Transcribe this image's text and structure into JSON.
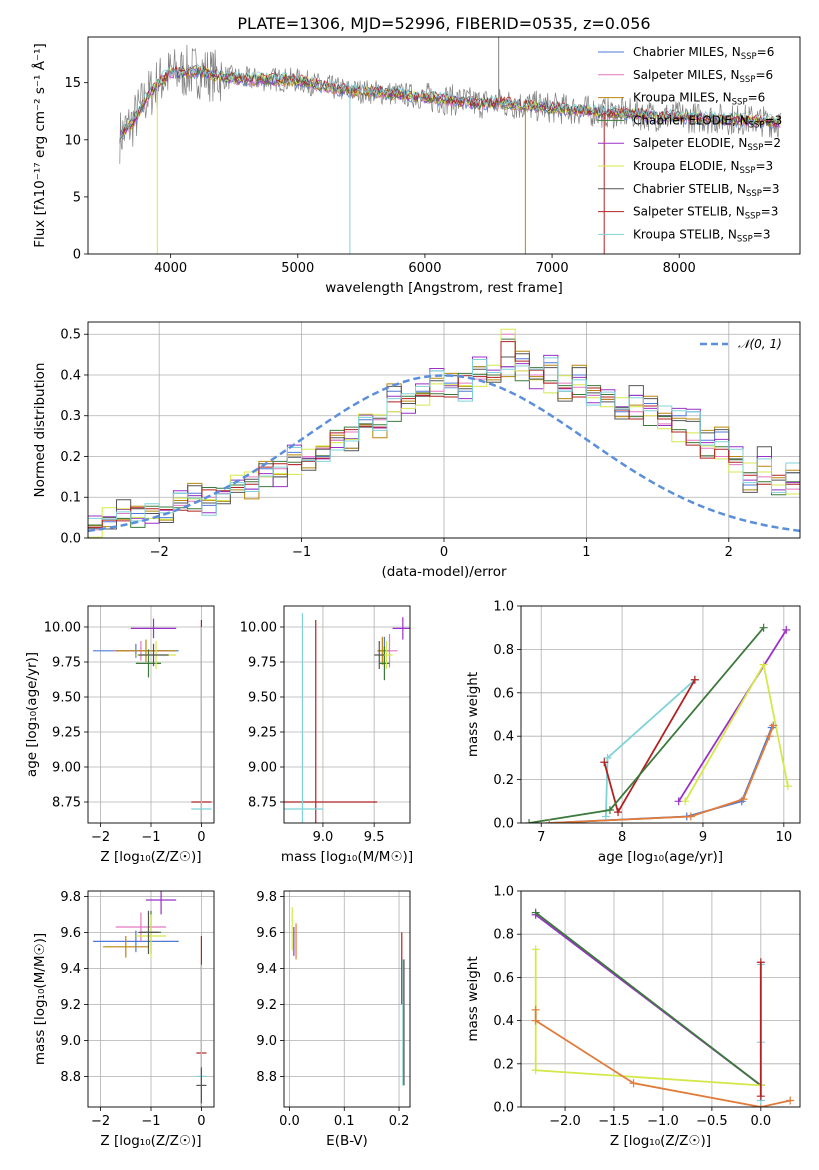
{
  "figure": {
    "title": "PLATE=1306, MJD=52996, FIBERID=0535, z=0.056"
  },
  "legend_spectrum": [
    {
      "name": "Chabrier MILES, N",
      "sub": "SSP",
      "suffix": "=6",
      "color": "#4e79d8"
    },
    {
      "name": "Salpeter MILES, N",
      "sub": "SSP",
      "suffix": "=6",
      "color": "#e377c2"
    },
    {
      "name": "Kroupa MILES, N",
      "sub": "SSP",
      "suffix": "=6",
      "color": "#b8860b"
    },
    {
      "name": "Chabrier ELODIE, N",
      "sub": "SSP",
      "suffix": "=3",
      "color": "#3c7a3c"
    },
    {
      "name": "Salpeter ELODIE, N",
      "sub": "SSP",
      "suffix": "=2",
      "color": "#9b30c8"
    },
    {
      "name": "Kroupa ELODIE, N",
      "sub": "SSP",
      "suffix": "=3",
      "color": "#d4e84a"
    },
    {
      "name": "Chabrier STELIB, N",
      "sub": "SSP",
      "suffix": "=3",
      "color": "#555555"
    },
    {
      "name": "Salpeter STELIB, N",
      "sub": "SSP",
      "suffix": "=3",
      "color": "#b22222"
    },
    {
      "name": "Kroupa STELIB, N",
      "sub": "SSP",
      "suffix": "=3",
      "color": "#7fd3d8"
    }
  ],
  "legend_hist": {
    "label": "𝒩(0, 1)",
    "color": "#5b8fdc"
  },
  "chart_data": [
    {
      "type": "line",
      "id": "spectrum",
      "xlabel": "wavelength [Angstrom, rest frame]",
      "ylabel": "Flux [fλ10⁻¹⁷ erg cm⁻² s⁻¹ Å⁻¹]",
      "xlim": [
        3350,
        8950
      ],
      "ylim": [
        0,
        19
      ],
      "xticks": [
        4000,
        5000,
        6000,
        7000,
        8000
      ],
      "yticks": [
        0,
        5,
        10,
        15
      ],
      "grid": false,
      "legend": "top-right",
      "x": [
        3600,
        3700,
        3800,
        3900,
        4000,
        4200,
        4400,
        4600,
        4800,
        5000,
        5200,
        5400,
        5600,
        5800,
        6000,
        6200,
        6400,
        6600,
        6800,
        7000,
        7200,
        7400,
        7600,
        7800,
        8000,
        8200,
        8400,
        8600,
        8800
      ],
      "series": [
        {
          "y": [
            10.3,
            11.5,
            13.5,
            15.0,
            15.8,
            16.0,
            15.5,
            15.3,
            15.3,
            15.2,
            14.7,
            14.3,
            14.2,
            14.0,
            13.7,
            13.5,
            13.2,
            13.2,
            13.0,
            12.8,
            12.6,
            12.4,
            12.3,
            12.1,
            12.0,
            11.9,
            11.8,
            11.7,
            11.5
          ]
        }
      ]
    },
    {
      "type": "histogram",
      "id": "residuals",
      "xlabel": "(data-model)/error",
      "ylabel": "Normed distribution",
      "xlim": [
        -2.5,
        2.5
      ],
      "ylim": [
        0,
        0.53
      ],
      "xticks": [
        -2,
        -1,
        0,
        1,
        2
      ],
      "yticks": [
        0.0,
        0.1,
        0.2,
        0.3,
        0.4,
        0.5
      ],
      "grid": true,
      "legend": "top-right",
      "bin_width": 0.1,
      "series": [
        {
          "name": "Salpeter ELODIE",
          "values": [
            0.03,
            0.04,
            0.07,
            0.06,
            0.06,
            0.05,
            0.11,
            0.11,
            0.08,
            0.09,
            0.13,
            0.12,
            0.17,
            0.15,
            0.21,
            0.19,
            0.2,
            0.24,
            0.22,
            0.29,
            0.27,
            0.36,
            0.33,
            0.36,
            0.41,
            0.38,
            0.36,
            0.42,
            0.4,
            0.42,
            0.44,
            0.39,
            0.43,
            0.36,
            0.4,
            0.35,
            0.34,
            0.31,
            0.35,
            0.33,
            0.3,
            0.3,
            0.31,
            0.24,
            0.26,
            0.2,
            0.13,
            0.2,
            0.13,
            0.16,
            0.12,
            0.12,
            0.1,
            0.09,
            0.11,
            0.06,
            0.08,
            0.06,
            0.05,
            0.04
          ]
        },
        {
          "name": "Kroupa STELIB",
          "values": [
            0.02,
            0.05,
            0.06,
            0.05,
            0.06,
            0.07,
            0.08,
            0.09,
            0.1,
            0.11,
            0.13,
            0.15,
            0.15,
            0.17,
            0.18,
            0.2,
            0.22,
            0.24,
            0.26,
            0.28,
            0.29,
            0.31,
            0.33,
            0.35,
            0.36,
            0.37,
            0.38,
            0.39,
            0.4,
            0.5,
            0.41,
            0.4,
            0.38,
            0.38,
            0.37,
            0.35,
            0.34,
            0.32,
            0.31,
            0.3,
            0.28,
            0.26,
            0.24,
            0.22,
            0.2,
            0.18,
            0.16,
            0.15,
            0.13,
            0.12,
            0.1,
            0.09,
            0.08,
            0.07,
            0.06,
            0.05,
            0.05,
            0.04,
            0.03,
            0.03
          ]
        }
      ],
      "normal_curve": {
        "mu": 0,
        "sigma": 1,
        "label": "𝒩(0, 1)"
      }
    },
    {
      "type": "scatter",
      "id": "age-vs-Z",
      "xlabel": "Z [log₁₀(Z/Z☉)]",
      "ylabel": "age  [log₁₀(age/yr)]",
      "xlim": [
        -2.25,
        0.25
      ],
      "ylim": [
        8.6,
        10.15
      ],
      "xticks": [
        -2,
        -1,
        0
      ],
      "yticks": [
        8.75,
        9.0,
        9.25,
        9.5,
        9.75,
        10.0
      ],
      "grid": true,
      "points": [
        {
          "x": -1.3,
          "y": 9.83,
          "xerr": 0.85,
          "yerr": 0.05,
          "color": "#4e79d8"
        },
        {
          "x": -1.2,
          "y": 9.83,
          "xerr": 0.55,
          "yerr": 0.07,
          "color": "#e377c2"
        },
        {
          "x": -1.1,
          "y": 9.83,
          "xerr": 0.6,
          "yerr": 0.08,
          "color": "#b8860b"
        },
        {
          "x": -1.05,
          "y": 9.74,
          "xerr": 0.25,
          "yerr": 0.1,
          "color": "#3c7a3c"
        },
        {
          "x": -0.95,
          "y": 9.99,
          "xerr": 0.45,
          "yerr": 0.07,
          "color": "#9b30c8"
        },
        {
          "x": -0.9,
          "y": 9.8,
          "xerr": 0.4,
          "yerr": 0.1,
          "color": "#d4e84a"
        },
        {
          "x": -0.95,
          "y": 9.8,
          "xerr": 0.3,
          "yerr": 0.08,
          "color": "#555555"
        },
        {
          "x": 0.0,
          "y": 8.75,
          "xerr": 0.2,
          "yerr": 1.3,
          "color": "#b22222"
        },
        {
          "x": 0.0,
          "y": 8.7,
          "xerr": 0.2,
          "yerr": 1.3,
          "color": "#7fd3d8"
        }
      ]
    },
    {
      "type": "scatter",
      "id": "age-vs-mass",
      "xlabel": "mass [log₁₀(M/M☉)]",
      "ylabel": "",
      "xlim": [
        8.62,
        9.85
      ],
      "ylim": [
        8.6,
        10.15
      ],
      "xticks": [
        9.0,
        9.5
      ],
      "yticks": [
        8.75,
        9.0,
        9.25,
        9.5,
        9.75,
        10.0
      ],
      "grid": true,
      "points": [
        {
          "x": 9.6,
          "y": 9.83,
          "xerr": 0.05,
          "yerr": 0.1,
          "color": "#4e79d8"
        },
        {
          "x": 9.65,
          "y": 9.83,
          "xerr": 0.08,
          "yerr": 0.12,
          "color": "#e377c2"
        },
        {
          "x": 9.58,
          "y": 9.83,
          "xerr": 0.05,
          "yerr": 0.1,
          "color": "#b8860b"
        },
        {
          "x": 9.6,
          "y": 9.74,
          "xerr": 0.05,
          "yerr": 0.12,
          "color": "#3c7a3c"
        },
        {
          "x": 9.78,
          "y": 9.99,
          "xerr": 0.1,
          "yerr": 0.08,
          "color": "#9b30c8"
        },
        {
          "x": 9.62,
          "y": 9.8,
          "xerr": 0.06,
          "yerr": 0.1,
          "color": "#d4e84a"
        },
        {
          "x": 9.55,
          "y": 9.8,
          "xerr": 0.05,
          "yerr": 0.1,
          "color": "#555555"
        },
        {
          "x": 8.93,
          "y": 8.75,
          "xerr": 0.6,
          "yerr": 1.3,
          "color": "#b22222"
        },
        {
          "x": 8.8,
          "y": 8.7,
          "xerr": 0.2,
          "yerr": 1.4,
          "color": "#7fd3d8"
        }
      ]
    },
    {
      "type": "line",
      "id": "massweight-vs-age",
      "xlabel": "age  [log₁₀(age/yr)]",
      "ylabel": "mass weight",
      "xlim": [
        6.75,
        10.2
      ],
      "ylim": [
        0,
        1.0
      ],
      "xticks": [
        7,
        8,
        9,
        10
      ],
      "yticks": [
        0.0,
        0.2,
        0.4,
        0.6,
        0.8,
        1.0
      ],
      "grid": true,
      "series": [
        {
          "color": "#7fd3d8",
          "x": [
            7.8,
            7.82,
            8.9
          ],
          "y": [
            0.03,
            0.3,
            0.66
          ]
        },
        {
          "color": "#b22222",
          "x": [
            7.78,
            7.95,
            8.9
          ],
          "y": [
            0.28,
            0.05,
            0.66
          ]
        },
        {
          "color": "#3c7a3c",
          "x": [
            6.85,
            7.85,
            9.75
          ],
          "y": [
            0.0,
            0.06,
            0.9
          ]
        },
        {
          "color": "#9b30c8",
          "x": [
            8.7,
            10.03
          ],
          "y": [
            0.1,
            0.89
          ]
        },
        {
          "color": "#d4e84a",
          "x": [
            8.78,
            9.75,
            10.05
          ],
          "y": [
            0.1,
            0.73,
            0.17
          ]
        },
        {
          "color": "#4e79d8",
          "x": [
            7.1,
            8.8,
            9.48,
            9.85
          ],
          "y": [
            0.0,
            0.03,
            0.1,
            0.44
          ]
        },
        {
          "color": "#e07b39",
          "x": [
            7.1,
            8.85,
            9.5,
            9.82,
            9.87
          ],
          "y": [
            0.0,
            0.03,
            0.11,
            0.4,
            0.45
          ]
        }
      ]
    },
    {
      "type": "scatter",
      "id": "mass-vs-Z",
      "xlabel": "Z [log₁₀(Z/Z☉)]",
      "ylabel": "mass [log₁₀(M/M☉)]",
      "xlim": [
        -2.25,
        0.25
      ],
      "ylim": [
        8.63,
        9.83
      ],
      "xticks": [
        -2,
        -1,
        0
      ],
      "yticks": [
        8.8,
        9.0,
        9.2,
        9.4,
        9.6,
        9.8
      ],
      "grid": true,
      "points": [
        {
          "x": -1.3,
          "y": 9.55,
          "xerr": 0.85,
          "yerr": 0.06,
          "color": "#4e79d8"
        },
        {
          "x": -1.2,
          "y": 9.63,
          "xerr": 0.5,
          "yerr": 0.08,
          "color": "#e377c2"
        },
        {
          "x": -1.5,
          "y": 9.52,
          "xerr": 0.45,
          "yerr": 0.06,
          "color": "#b8860b"
        },
        {
          "x": -1.0,
          "y": 9.6,
          "xerr": 0.2,
          "yerr": 0.12,
          "color": "#3c7a3c"
        },
        {
          "x": -0.8,
          "y": 9.78,
          "xerr": 0.3,
          "yerr": 0.08,
          "color": "#9b30c8"
        },
        {
          "x": -1.0,
          "y": 9.58,
          "xerr": 0.3,
          "yerr": 0.12,
          "color": "#d4e84a"
        },
        {
          "x": -1.05,
          "y": 9.6,
          "xerr": 0.2,
          "yerr": 0.12,
          "color": "#555555"
        },
        {
          "x": 0.0,
          "y": 8.93,
          "xerr": 0.1,
          "yerr": 0.65,
          "color": "#b22222"
        },
        {
          "x": 0.0,
          "y": 8.8,
          "xerr": 0.1,
          "yerr": 0.62,
          "color": "#7fd3d8"
        },
        {
          "x": 0.0,
          "y": 8.75,
          "xerr": 0.1,
          "yerr": 0.1,
          "color": "#555555"
        }
      ]
    },
    {
      "type": "scatter",
      "id": "mass-vs-EBV",
      "xlabel": "E(B-V)",
      "ylabel": "",
      "xlim": [
        -0.01,
        0.22
      ],
      "ylim": [
        8.63,
        9.83
      ],
      "xticks": [
        0.0,
        0.1,
        0.2
      ],
      "yticks": [
        8.8,
        9.0,
        9.2,
        9.4,
        9.6,
        9.8
      ],
      "grid": true,
      "points": [
        {
          "x": 0.005,
          "y": 9.62,
          "xerr": 0.0,
          "yerr": 0.12,
          "color": "#d4e84a"
        },
        {
          "x": 0.008,
          "y": 9.55,
          "xerr": 0.0,
          "yerr": 0.08,
          "color": "#9b30c8"
        },
        {
          "x": 0.012,
          "y": 9.55,
          "xerr": 0.0,
          "yerr": 0.1,
          "color": "#e07b39"
        },
        {
          "x": 0.205,
          "y": 9.4,
          "xerr": 0.0,
          "yerr": 0.2,
          "color": "#b22222"
        },
        {
          "x": 0.207,
          "y": 9.1,
          "xerr": 0.0,
          "yerr": 0.35,
          "color": "#7fd3d8"
        },
        {
          "x": 0.209,
          "y": 9.1,
          "xerr": 0.0,
          "yerr": 0.35,
          "color": "#555555"
        }
      ]
    },
    {
      "type": "line",
      "id": "massweight-vs-Z",
      "xlabel": "Z [log₁₀(Z/Z☉)]",
      "ylabel": "mass weight",
      "xlim": [
        -2.45,
        0.4
      ],
      "ylim": [
        0,
        1.0
      ],
      "xticks": [
        -2.0,
        -1.5,
        -1.0,
        -0.5,
        0.0
      ],
      "yticks": [
        0.0,
        0.2,
        0.4,
        0.6,
        0.8,
        1.0
      ],
      "grid": true,
      "series": [
        {
          "color": "#9b30c8",
          "x": [
            -2.3,
            0.0
          ],
          "y": [
            0.89,
            0.1
          ]
        },
        {
          "color": "#3c7a3c",
          "x": [
            -2.3,
            0.0
          ],
          "y": [
            0.9,
            0.1
          ]
        },
        {
          "color": "#d4e84a",
          "x": [
            -2.3,
            -2.3,
            0.0
          ],
          "y": [
            0.73,
            0.17,
            0.1
          ]
        },
        {
          "color": "#e07b39",
          "x": [
            -2.3,
            -2.3,
            -1.3,
            0.0,
            0.3
          ],
          "y": [
            0.45,
            0.4,
            0.11,
            0.0,
            0.03
          ]
        },
        {
          "color": "#7fd3d8",
          "x": [
            0.0,
            0.0,
            0.0
          ],
          "y": [
            0.66,
            0.3,
            0.03
          ]
        },
        {
          "color": "#b22222",
          "x": [
            0.0,
            0.0
          ],
          "y": [
            0.67,
            0.05
          ]
        }
      ]
    }
  ]
}
